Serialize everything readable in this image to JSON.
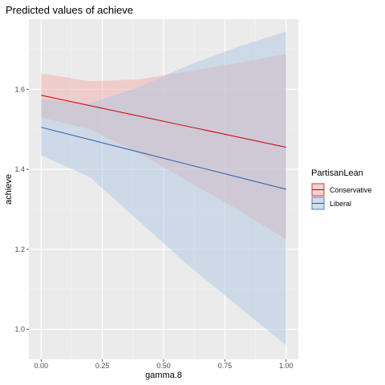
{
  "chart_data": {
    "type": "line",
    "title": "Predicted values of achieve",
    "xlabel": "gamma.8",
    "ylabel": "achieve",
    "xlim": [
      -0.05,
      1.05
    ],
    "ylim": [
      0.925,
      1.775
    ],
    "x_ticks": [
      0.0,
      0.25,
      0.5,
      0.75,
      1.0
    ],
    "x_tick_labels": [
      "0.00",
      "0.25",
      "0.50",
      "0.75",
      "1.00"
    ],
    "y_ticks": [
      1.0,
      1.2,
      1.4,
      1.6
    ],
    "y_tick_labels": [
      "1.0",
      "1.2",
      "1.4",
      "1.6"
    ],
    "grid": true,
    "background": "#ebebeb",
    "legend": {
      "title": "PartisanLean",
      "position": "right"
    },
    "series": [
      {
        "name": "Conservative",
        "color": "#cc0000",
        "ribbon_color": "#f4a6a6",
        "x": [
          0.0,
          0.2,
          0.4,
          0.6,
          0.8,
          1.0
        ],
        "y": [
          1.585,
          1.559,
          1.533,
          1.507,
          1.481,
          1.455
        ],
        "lower": [
          1.53,
          1.5,
          1.44,
          1.37,
          1.3,
          1.225
        ],
        "upper": [
          1.64,
          1.62,
          1.625,
          1.645,
          1.665,
          1.688
        ]
      },
      {
        "name": "Liberal",
        "color": "#2a5aa8",
        "ribbon_color": "#a9c4df",
        "x": [
          0.0,
          0.2,
          0.4,
          0.6,
          0.8,
          1.0
        ],
        "y": [
          1.505,
          1.474,
          1.443,
          1.412,
          1.381,
          1.35
        ],
        "lower": [
          1.435,
          1.38,
          1.27,
          1.16,
          1.06,
          0.96
        ],
        "upper": [
          1.575,
          1.565,
          1.605,
          1.66,
          1.705,
          1.745
        ]
      }
    ]
  }
}
